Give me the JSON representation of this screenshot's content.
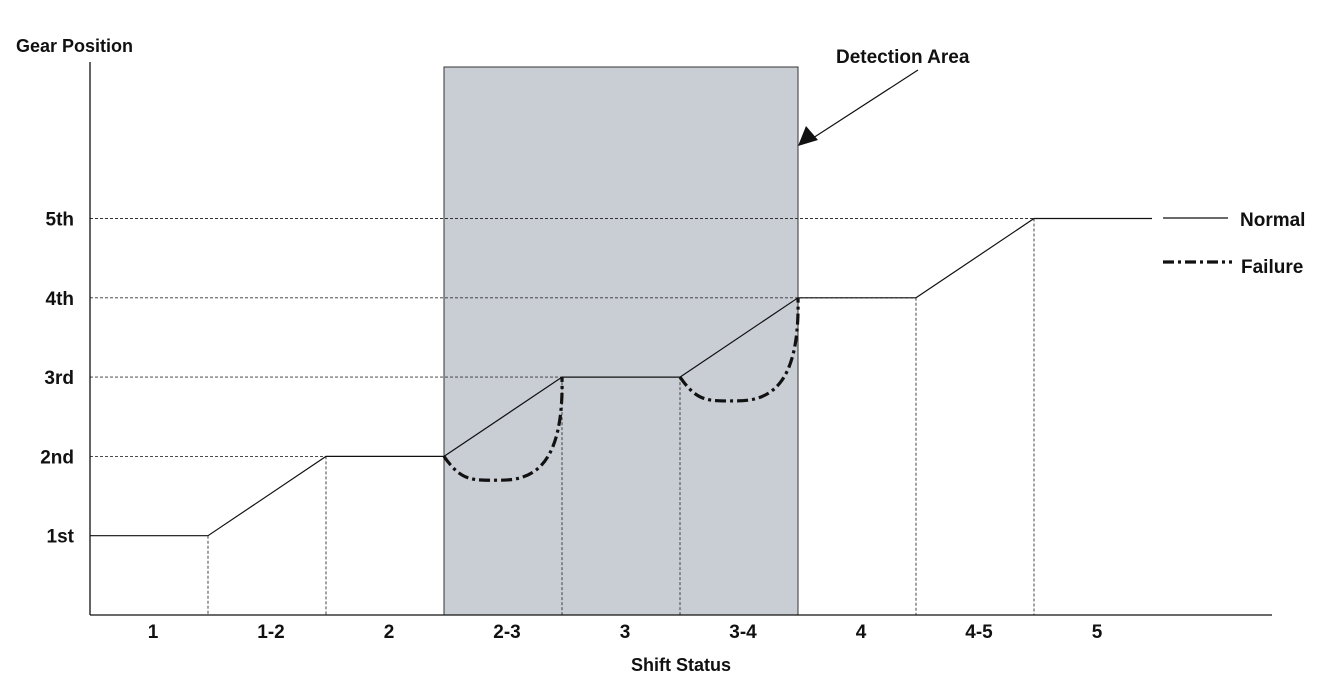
{
  "chart_data": {
    "type": "line",
    "ylabel": "Gear Position",
    "xlabel": "Shift Status",
    "annotation": "Detection Area",
    "y_levels": [
      "1st",
      "2nd",
      "3rd",
      "4th",
      "5th"
    ],
    "categories": [
      "1",
      "1-2",
      "2",
      "2-3",
      "3",
      "3-4",
      "4",
      "4-5",
      "5"
    ],
    "series": [
      {
        "name": "Normal",
        "style": "solid",
        "points": [
          [
            0,
            1
          ],
          [
            1,
            1
          ],
          [
            2,
            2
          ],
          [
            3,
            2
          ],
          [
            4,
            3
          ],
          [
            5,
            3
          ],
          [
            6,
            4
          ],
          [
            7,
            4
          ],
          [
            8,
            5
          ],
          [
            9,
            5
          ]
        ]
      },
      {
        "name": "Failure",
        "style": "dash-dot",
        "segments": [
          {
            "from": [
              3,
              2
            ],
            "to": [
              4,
              3
            ],
            "min_y": 1.7
          },
          {
            "from": [
              5,
              3
            ],
            "to": [
              6,
              4
            ],
            "min_y": 2.7
          }
        ]
      }
    ],
    "detection_area": {
      "x_start": 3,
      "x_end": 6
    },
    "colors": {
      "detection_area": "#c9ced5",
      "line": "#111111"
    }
  }
}
